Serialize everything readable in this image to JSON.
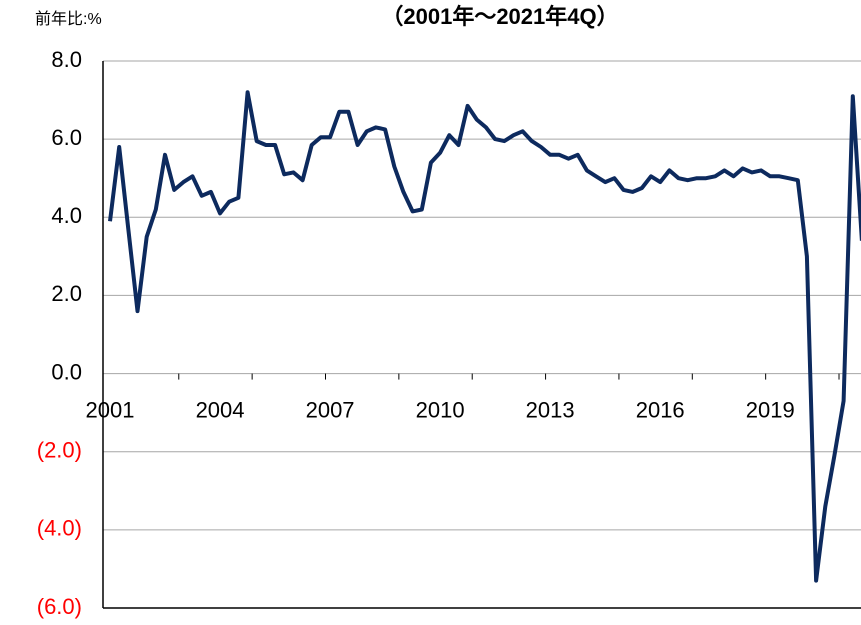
{
  "chart_data": {
    "type": "line",
    "title": "（2001年～2021年4Q）",
    "y_label": "前年比:%",
    "categories": [
      "2001",
      null,
      null,
      null,
      null,
      null,
      null,
      null,
      null,
      null,
      null,
      null,
      "2004",
      null,
      null,
      null,
      null,
      null,
      null,
      null,
      null,
      null,
      null,
      null,
      "2007",
      null,
      null,
      null,
      null,
      null,
      null,
      null,
      null,
      null,
      null,
      null,
      "2010",
      null,
      null,
      null,
      null,
      null,
      null,
      null,
      null,
      null,
      null,
      null,
      "2013",
      null,
      null,
      null,
      null,
      null,
      null,
      null,
      null,
      null,
      null,
      null,
      "2016",
      null,
      null,
      null,
      null,
      null,
      null,
      null,
      null,
      null,
      null,
      null,
      "2019",
      null,
      null,
      null,
      null,
      null,
      null,
      null,
      null,
      null,
      null
    ],
    "series": [
      {
        "name": null,
        "color": "#0d2a5e",
        "values": [
          3.9,
          5.8,
          3.7,
          1.6,
          3.5,
          4.2,
          5.6,
          4.7,
          4.9,
          5.05,
          4.55,
          4.65,
          4.1,
          4.4,
          4.5,
          7.2,
          5.95,
          5.85,
          5.85,
          5.1,
          5.15,
          4.95,
          5.85,
          6.05,
          6.05,
          6.7,
          6.7,
          5.85,
          6.2,
          6.3,
          6.25,
          5.3,
          4.65,
          4.15,
          4.2,
          5.4,
          5.65,
          6.1,
          5.85,
          6.85,
          6.5,
          6.3,
          6.0,
          5.95,
          6.1,
          6.2,
          5.95,
          5.8,
          5.6,
          5.6,
          5.5,
          5.6,
          5.2,
          5.05,
          4.9,
          5.0,
          4.7,
          4.65,
          4.75,
          5.05,
          4.9,
          5.2,
          5.0,
          4.95,
          5.0,
          5.0,
          5.05,
          5.2,
          5.05,
          5.25,
          5.15,
          5.2,
          5.05,
          5.05,
          5.0,
          4.95,
          3.0,
          -5.3,
          -3.4,
          -2.1,
          -0.7,
          7.1,
          3.4
        ]
      }
    ],
    "ylim": [
      -6,
      8
    ],
    "yticks": [
      {
        "value": 8,
        "label": "8.0"
      },
      {
        "value": 6,
        "label": "6.0"
      },
      {
        "value": 4,
        "label": "4.0"
      },
      {
        "value": 2,
        "label": "2.0"
      },
      {
        "value": 0,
        "label": "0.0"
      },
      {
        "value": -2,
        "label": "(2.0)"
      },
      {
        "value": -4,
        "label": "(4.0)"
      },
      {
        "value": -6,
        "label": "(6.0)"
      }
    ],
    "grid": true,
    "negative_tick_color": "#ff0000"
  }
}
